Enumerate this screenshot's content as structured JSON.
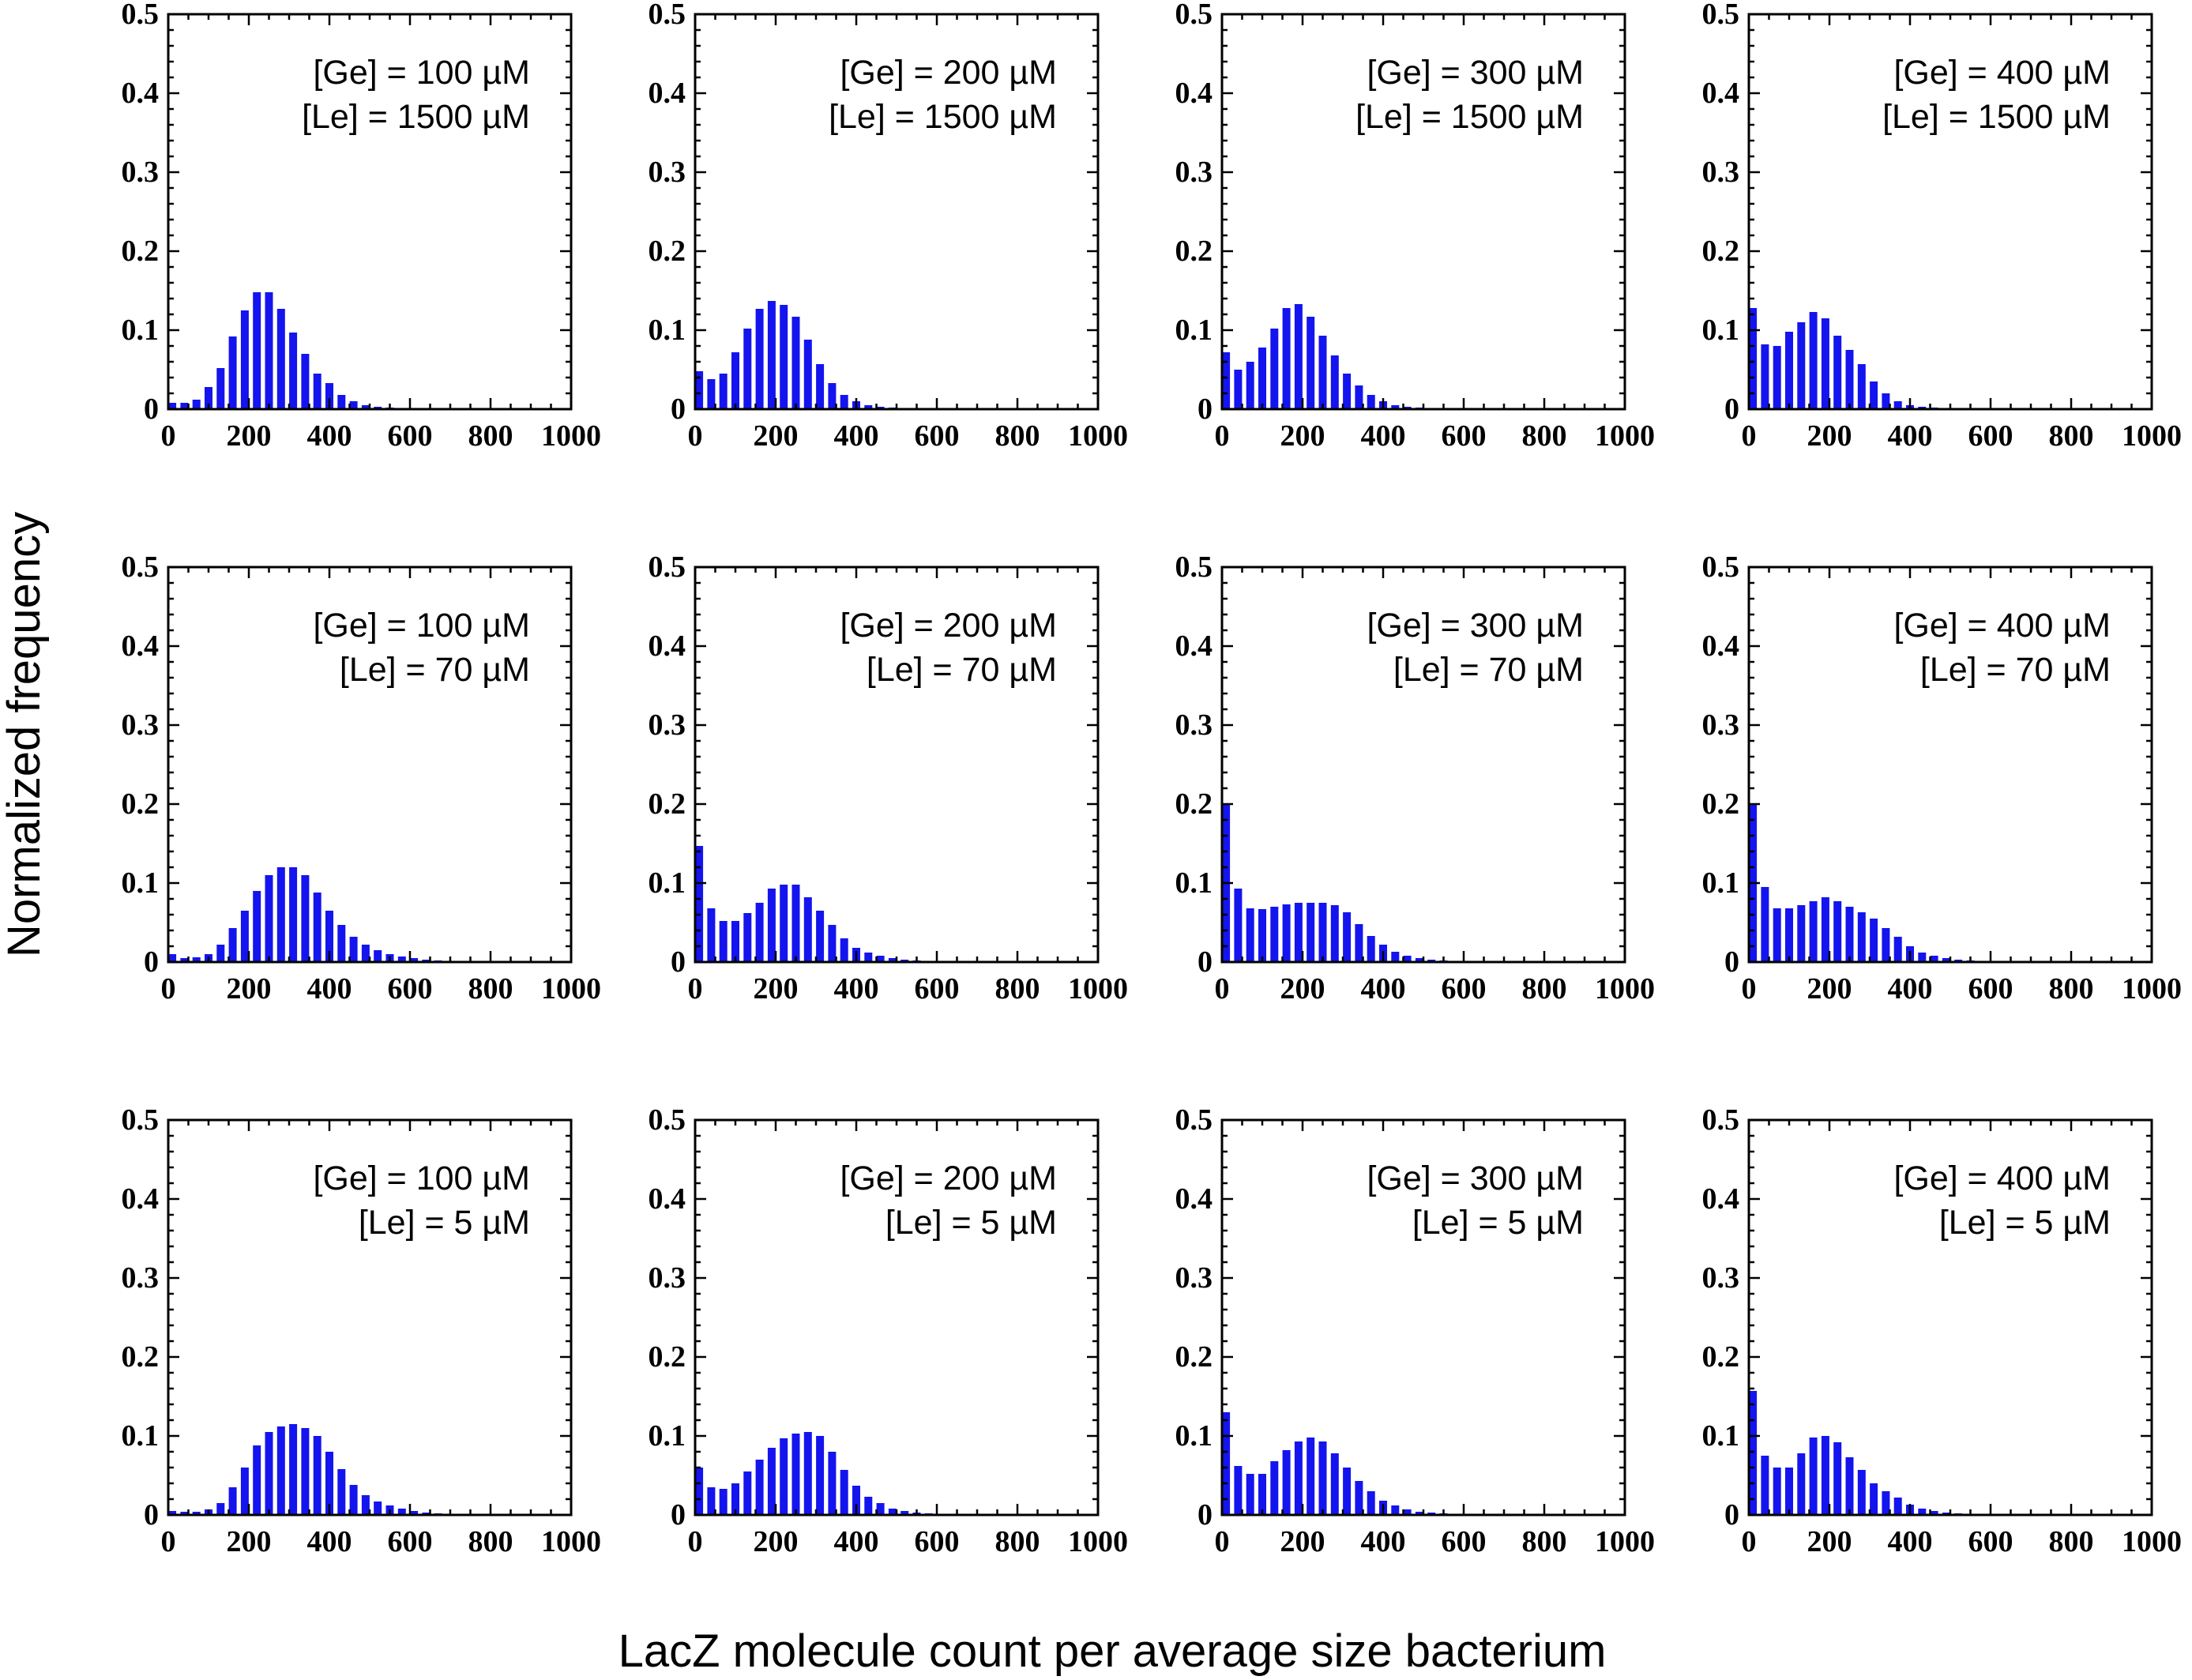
{
  "figure": {
    "ylabel": "Normalized frequency",
    "xlabel": "LacZ molecule count per average size bacterium",
    "bar_color": "#1414ee",
    "x_ticks": [
      "0",
      "200",
      "400",
      "600",
      "800",
      "1000"
    ],
    "y_ticks": [
      "0",
      "0.1",
      "0.2",
      "0.3",
      "0.4",
      "0.5"
    ]
  },
  "chart_data": [
    {
      "type": "bar",
      "annotation": [
        "[Ge] = 100 µM",
        "[Le] = 1500 µM"
      ],
      "xlim": [
        0,
        1000
      ],
      "ylim": [
        0,
        0.5
      ],
      "x": [
        10,
        40,
        70,
        100,
        130,
        160,
        190,
        220,
        250,
        280,
        310,
        340,
        370,
        400,
        430,
        460,
        490,
        520,
        550,
        580,
        610,
        640,
        670,
        700,
        730,
        760,
        790,
        820,
        850,
        880
      ],
      "values": [
        0.008,
        0.008,
        0.012,
        0.028,
        0.052,
        0.092,
        0.125,
        0.148,
        0.148,
        0.127,
        0.097,
        0.07,
        0.045,
        0.033,
        0.018,
        0.01,
        0.005,
        0.003,
        0.002,
        0.001,
        0,
        0,
        0,
        0,
        0,
        0,
        0,
        0,
        0,
        0
      ]
    },
    {
      "type": "bar",
      "annotation": [
        "[Ge] = 200 µM",
        "[Le] = 1500 µM"
      ],
      "xlim": [
        0,
        1000
      ],
      "ylim": [
        0,
        0.5
      ],
      "x": [
        10,
        40,
        70,
        100,
        130,
        160,
        190,
        220,
        250,
        280,
        310,
        340,
        370,
        400,
        430,
        460,
        490,
        520,
        550,
        580,
        610,
        640,
        670,
        700,
        730,
        760,
        790,
        820,
        850,
        880
      ],
      "values": [
        0.048,
        0.038,
        0.045,
        0.072,
        0.102,
        0.127,
        0.137,
        0.132,
        0.117,
        0.088,
        0.057,
        0.033,
        0.018,
        0.01,
        0.005,
        0.003,
        0.002,
        0.001,
        0,
        0,
        0,
        0,
        0,
        0,
        0,
        0,
        0,
        0,
        0,
        0
      ]
    },
    {
      "type": "bar",
      "annotation": [
        "[Ge] = 300 µM",
        "[Le] = 1500 µM"
      ],
      "xlim": [
        0,
        1000
      ],
      "ylim": [
        0,
        0.5
      ],
      "x": [
        10,
        40,
        70,
        100,
        130,
        160,
        190,
        220,
        250,
        280,
        310,
        340,
        370,
        400,
        430,
        460,
        490,
        520,
        550,
        580,
        610,
        640,
        670,
        700,
        730,
        760,
        790,
        820,
        850,
        880
      ],
      "values": [
        0.072,
        0.05,
        0.06,
        0.078,
        0.102,
        0.128,
        0.133,
        0.117,
        0.093,
        0.068,
        0.045,
        0.03,
        0.018,
        0.01,
        0.005,
        0.003,
        0.002,
        0.001,
        0,
        0,
        0,
        0,
        0,
        0,
        0,
        0,
        0,
        0,
        0,
        0
      ]
    },
    {
      "type": "bar",
      "annotation": [
        "[Ge] = 400 µM",
        "[Le] = 1500 µM"
      ],
      "xlim": [
        0,
        1000
      ],
      "ylim": [
        0,
        0.5
      ],
      "x": [
        10,
        40,
        70,
        100,
        130,
        160,
        190,
        220,
        250,
        280,
        310,
        340,
        370,
        400,
        430,
        460,
        490,
        520,
        550,
        580,
        610,
        640,
        670,
        700,
        730,
        760,
        790,
        820,
        850,
        880
      ],
      "values": [
        0.128,
        0.082,
        0.08,
        0.098,
        0.11,
        0.123,
        0.115,
        0.093,
        0.075,
        0.057,
        0.035,
        0.02,
        0.01,
        0.005,
        0.003,
        0.002,
        0.001,
        0,
        0,
        0,
        0,
        0,
        0,
        0,
        0,
        0,
        0,
        0,
        0,
        0
      ]
    },
    {
      "type": "bar",
      "annotation": [
        "[Ge] = 100 µM",
        "[Le] = 70 µM"
      ],
      "xlim": [
        0,
        1000
      ],
      "ylim": [
        0,
        0.5
      ],
      "x": [
        10,
        40,
        70,
        100,
        130,
        160,
        190,
        220,
        250,
        280,
        310,
        340,
        370,
        400,
        430,
        460,
        490,
        520,
        550,
        580,
        610,
        640,
        670,
        700,
        730,
        760,
        790,
        820,
        850,
        880
      ],
      "values": [
        0.01,
        0.005,
        0.006,
        0.01,
        0.022,
        0.043,
        0.065,
        0.09,
        0.11,
        0.12,
        0.12,
        0.11,
        0.088,
        0.065,
        0.047,
        0.032,
        0.022,
        0.015,
        0.01,
        0.007,
        0.005,
        0.003,
        0.002,
        0.001,
        0,
        0,
        0,
        0,
        0,
        0
      ]
    },
    {
      "type": "bar",
      "annotation": [
        "[Ge] = 200 µM",
        "[Le] = 70 µM"
      ],
      "xlim": [
        0,
        1000
      ],
      "ylim": [
        0,
        0.5
      ],
      "x": [
        10,
        40,
        70,
        100,
        130,
        160,
        190,
        220,
        250,
        280,
        310,
        340,
        370,
        400,
        430,
        460,
        490,
        520,
        550,
        580,
        610,
        640,
        670,
        700,
        730,
        760,
        790,
        820,
        850,
        880
      ],
      "values": [
        0.147,
        0.068,
        0.052,
        0.052,
        0.062,
        0.075,
        0.093,
        0.098,
        0.098,
        0.082,
        0.065,
        0.047,
        0.03,
        0.018,
        0.012,
        0.008,
        0.005,
        0.003,
        0.002,
        0.001,
        0,
        0,
        0,
        0,
        0,
        0,
        0,
        0,
        0,
        0
      ]
    },
    {
      "type": "bar",
      "annotation": [
        "[Ge] = 300 µM",
        "[Le] = 70 µM"
      ],
      "xlim": [
        0,
        1000
      ],
      "ylim": [
        0,
        0.5
      ],
      "x": [
        10,
        40,
        70,
        100,
        130,
        160,
        190,
        220,
        250,
        280,
        310,
        340,
        370,
        400,
        430,
        460,
        490,
        520,
        550,
        580,
        610,
        640,
        670,
        700,
        730,
        760,
        790,
        820,
        850,
        880
      ],
      "values": [
        0.2,
        0.093,
        0.068,
        0.067,
        0.07,
        0.073,
        0.075,
        0.075,
        0.075,
        0.072,
        0.063,
        0.048,
        0.033,
        0.022,
        0.013,
        0.008,
        0.005,
        0.003,
        0.002,
        0.001,
        0,
        0,
        0,
        0,
        0,
        0,
        0,
        0,
        0,
        0
      ]
    },
    {
      "type": "bar",
      "annotation": [
        "[Ge] = 400 µM",
        "[Le] = 70 µM"
      ],
      "xlim": [
        0,
        1000
      ],
      "ylim": [
        0,
        0.5
      ],
      "x": [
        10,
        40,
        70,
        100,
        130,
        160,
        190,
        220,
        250,
        280,
        310,
        340,
        370,
        400,
        430,
        460,
        490,
        520,
        550,
        580,
        610,
        640,
        670,
        700,
        730,
        760,
        790,
        820,
        850,
        880
      ],
      "values": [
        0.2,
        0.095,
        0.068,
        0.068,
        0.072,
        0.077,
        0.082,
        0.077,
        0.07,
        0.063,
        0.055,
        0.043,
        0.032,
        0.02,
        0.012,
        0.008,
        0.005,
        0.003,
        0.002,
        0.001,
        0,
        0,
        0,
        0,
        0,
        0,
        0,
        0,
        0,
        0
      ]
    },
    {
      "type": "bar",
      "annotation": [
        "[Ge] = 100 µM",
        "[Le] = 5 µM"
      ],
      "xlim": [
        0,
        1000
      ],
      "ylim": [
        0,
        0.5
      ],
      "x": [
        10,
        40,
        70,
        100,
        130,
        160,
        190,
        220,
        250,
        280,
        310,
        340,
        370,
        400,
        430,
        460,
        490,
        520,
        550,
        580,
        610,
        640,
        670,
        700,
        730,
        760,
        790,
        820,
        850,
        880
      ],
      "values": [
        0.005,
        0.004,
        0.004,
        0.007,
        0.015,
        0.035,
        0.06,
        0.088,
        0.105,
        0.112,
        0.115,
        0.11,
        0.1,
        0.08,
        0.058,
        0.038,
        0.025,
        0.017,
        0.012,
        0.008,
        0.005,
        0.003,
        0.002,
        0.001,
        0,
        0,
        0,
        0,
        0,
        0
      ]
    },
    {
      "type": "bar",
      "annotation": [
        "[Ge] = 200 µM",
        "[Le] = 5 µM"
      ],
      "xlim": [
        0,
        1000
      ],
      "ylim": [
        0,
        0.5
      ],
      "x": [
        10,
        40,
        70,
        100,
        130,
        160,
        190,
        220,
        250,
        280,
        310,
        340,
        370,
        400,
        430,
        460,
        490,
        520,
        550,
        580,
        610,
        640,
        670,
        700,
        730,
        760,
        790,
        820,
        850,
        880
      ],
      "values": [
        0.06,
        0.035,
        0.033,
        0.04,
        0.055,
        0.07,
        0.085,
        0.097,
        0.103,
        0.105,
        0.1,
        0.08,
        0.057,
        0.037,
        0.023,
        0.015,
        0.008,
        0.005,
        0.003,
        0.002,
        0.001,
        0,
        0,
        0,
        0,
        0,
        0,
        0,
        0,
        0
      ]
    },
    {
      "type": "bar",
      "annotation": [
        "[Ge] = 300 µM",
        "[Le] = 5 µM"
      ],
      "xlim": [
        0,
        1000
      ],
      "ylim": [
        0,
        0.5
      ],
      "x": [
        10,
        40,
        70,
        100,
        130,
        160,
        190,
        220,
        250,
        280,
        310,
        340,
        370,
        400,
        430,
        460,
        490,
        520,
        550,
        580,
        610,
        640,
        670,
        700,
        730,
        760,
        790,
        820,
        850,
        880
      ],
      "values": [
        0.13,
        0.062,
        0.052,
        0.052,
        0.068,
        0.082,
        0.093,
        0.098,
        0.093,
        0.078,
        0.06,
        0.043,
        0.03,
        0.018,
        0.012,
        0.007,
        0.004,
        0.003,
        0.002,
        0.001,
        0,
        0,
        0,
        0,
        0,
        0,
        0,
        0,
        0,
        0
      ]
    },
    {
      "type": "bar",
      "annotation": [
        "[Ge] = 400 µM",
        "[Le] = 5 µM"
      ],
      "xlim": [
        0,
        1000
      ],
      "ylim": [
        0,
        0.5
      ],
      "x": [
        10,
        40,
        70,
        100,
        130,
        160,
        190,
        220,
        250,
        280,
        310,
        340,
        370,
        400,
        430,
        460,
        490,
        520,
        550,
        580,
        610,
        640,
        670,
        700,
        730,
        760,
        790,
        820,
        850,
        880
      ],
      "values": [
        0.157,
        0.075,
        0.06,
        0.06,
        0.078,
        0.098,
        0.1,
        0.092,
        0.073,
        0.057,
        0.04,
        0.03,
        0.022,
        0.013,
        0.008,
        0.005,
        0.003,
        0.002,
        0.001,
        0,
        0,
        0,
        0,
        0,
        0,
        0,
        0,
        0,
        0,
        0
      ]
    }
  ]
}
